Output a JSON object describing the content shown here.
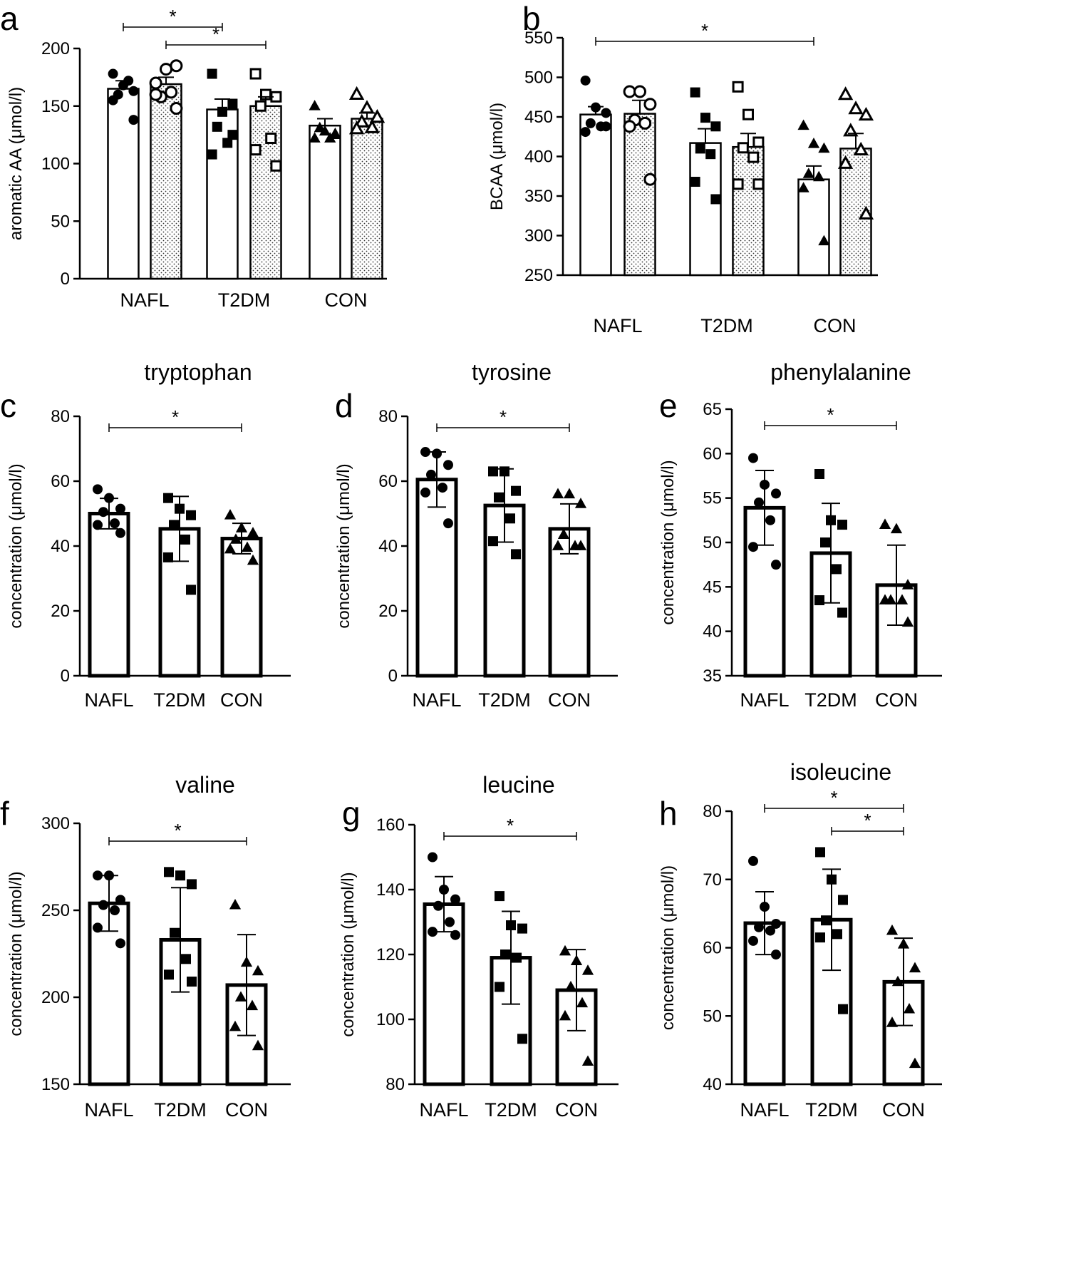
{
  "figure": {
    "description_units": "µmol/l"
  },
  "chart_data": [
    {
      "id": "a",
      "letter": "a",
      "type": "bar",
      "title": "",
      "ylabel": "aromatic AA (μmol/l)",
      "ylim": [
        0,
        200
      ],
      "yticks": [
        0,
        50,
        100,
        150,
        200
      ],
      "categories": [
        "NAFL",
        "T2DM",
        "CON"
      ],
      "error_bars": "sem",
      "paired_bars": true,
      "series": [
        {
          "name": "filled / open bar",
          "fill": "white",
          "marker": [
            "circle-filled",
            "square-filled",
            "triangle-filled"
          ],
          "values": [
            165,
            147,
            133
          ],
          "errors": [
            7,
            9,
            6
          ],
          "points": [
            [
              155,
              168,
              163,
              160,
              172,
              178,
              138
            ],
            [
              178,
              145,
              152,
              132,
              118,
              108,
              125
            ],
            [
              150,
              128,
              125,
              131,
              122,
              122,
              126
            ]
          ]
        },
        {
          "name": "open marker / dotted bar",
          "fill": "dotted",
          "marker": [
            "circle-open",
            "square-open",
            "triangle-open"
          ],
          "values": [
            169,
            150,
            139
          ],
          "errors": [
            6,
            8,
            5
          ],
          "points": [
            [
              170,
              182,
              185,
              158,
              162,
              160,
              148
            ],
            [
              178,
              160,
              158,
              150,
              122,
              112,
              98
            ],
            [
              160,
              148,
              140,
              136,
              131,
              130,
              140
            ]
          ]
        }
      ],
      "significance": [
        {
          "from": 0,
          "to": 2,
          "label": "*"
        },
        {
          "from": 1,
          "to": 3,
          "label": "*"
        }
      ]
    },
    {
      "id": "b",
      "letter": "b",
      "type": "bar",
      "title": "",
      "ylabel": "BCAA (μmol/l)",
      "ylim": [
        250,
        550
      ],
      "yticks": [
        250,
        300,
        350,
        400,
        450,
        500,
        550
      ],
      "categories": [
        "NAFL",
        "T2DM",
        "CON"
      ],
      "error_bars": "sem",
      "paired_bars": true,
      "series": [
        {
          "name": "filled / open bar",
          "fill": "white",
          "marker": [
            "circle-filled",
            "square-filled",
            "triangle-filled"
          ],
          "values": [
            453,
            417,
            371
          ],
          "errors": [
            10,
            18,
            17
          ],
          "points": [
            [
              496,
              462,
              455,
              442,
              438,
              431,
              438
            ],
            [
              481,
              449,
              438,
              410,
              403,
              368,
              346
            ],
            [
              439,
              416,
              410,
              378,
              374,
              360,
              293
            ]
          ]
        },
        {
          "name": "open marker / dotted bar",
          "fill": "dotted",
          "marker": [
            "circle-open",
            "square-open",
            "triangle-open"
          ],
          "values": [
            454,
            412,
            410
          ],
          "errors": [
            17,
            17,
            19
          ],
          "points": [
            [
              482,
              482,
              466,
              446,
              442,
              438,
              371
            ],
            [
              488,
              453,
              418,
              411,
              399,
              365,
              365
            ],
            [
              478,
              460,
              452,
              432,
              408,
              391,
              327
            ]
          ]
        }
      ],
      "significance": [
        {
          "from": 0,
          "to": 4,
          "label": "*"
        }
      ]
    },
    {
      "id": "c",
      "letter": "c",
      "type": "bar",
      "title": "tryptophan",
      "ylabel": "concentration (μmol/l)",
      "ylim": [
        0,
        80
      ],
      "yticks": [
        0,
        20,
        40,
        60,
        80
      ],
      "categories": [
        "NAFL",
        "T2DM",
        "CON"
      ],
      "error_bars": "sd",
      "marker": [
        "circle-filled",
        "square-filled",
        "triangle-filled"
      ],
      "values": [
        50,
        45.3,
        42.3
      ],
      "errors": [
        4.7,
        10,
        4.7
      ],
      "points": [
        [
          57.5,
          54.8,
          51.5,
          50.5,
          47,
          46.5,
          44
        ],
        [
          54.8,
          51.5,
          49.5,
          46.5,
          42,
          36.5,
          26.5
        ],
        [
          49.5,
          45.5,
          44,
          42,
          39.5,
          39,
          35.5
        ]
      ],
      "significance": [
        {
          "from": 0,
          "to": 2,
          "label": "*"
        }
      ]
    },
    {
      "id": "d",
      "letter": "d",
      "type": "bar",
      "title": "tyrosine",
      "ylabel": "concentration (μmol/l)",
      "ylim": [
        0,
        80
      ],
      "yticks": [
        0,
        20,
        40,
        60,
        80
      ],
      "categories": [
        "NAFL",
        "T2DM",
        "CON"
      ],
      "error_bars": "sd",
      "marker": [
        "circle-filled",
        "square-filled",
        "triangle-filled"
      ],
      "values": [
        60.5,
        52.5,
        45.3
      ],
      "errors": [
        8.5,
        11.3,
        7.7
      ],
      "points": [
        [
          69,
          68.5,
          65,
          62,
          58,
          56.5,
          47
        ],
        [
          63,
          63,
          57,
          55,
          48.5,
          41.5,
          37.5
        ],
        [
          56,
          56,
          53,
          43.5,
          40,
          40,
          40
        ]
      ],
      "significance": [
        {
          "from": 0,
          "to": 2,
          "label": "*"
        }
      ]
    },
    {
      "id": "e",
      "letter": "e",
      "type": "bar",
      "title": "phenylalanine",
      "ylabel": "concentration (μmol/l)",
      "ylim": [
        35,
        65
      ],
      "yticks": [
        35,
        40,
        45,
        50,
        55,
        60,
        65
      ],
      "categories": [
        "NAFL",
        "T2DM",
        "CON"
      ],
      "error_bars": "sd",
      "marker": [
        "circle-filled",
        "square-filled",
        "triangle-filled"
      ],
      "values": [
        53.9,
        48.8,
        45.2
      ],
      "errors": [
        4.2,
        5.6,
        4.5
      ],
      "points": [
        [
          59.5,
          56.5,
          55.5,
          54.5,
          52.5,
          49.5,
          47.5
        ],
        [
          57.7,
          52.5,
          52,
          50,
          47,
          43.5,
          42.1
        ],
        [
          52,
          51.5,
          45.2,
          43.5,
          43.5,
          43.5,
          41
        ]
      ],
      "significance": [
        {
          "from": 0,
          "to": 2,
          "label": "*"
        }
      ]
    },
    {
      "id": "f",
      "letter": "f",
      "type": "bar",
      "title": "valine",
      "ylabel": "concentration (μmol/l)",
      "ylim": [
        150,
        300
      ],
      "yticks": [
        150,
        200,
        250,
        300
      ],
      "categories": [
        "NAFL",
        "T2DM",
        "CON"
      ],
      "error_bars": "sd",
      "marker": [
        "circle-filled",
        "square-filled",
        "triangle-filled"
      ],
      "values": [
        254,
        233,
        207
      ],
      "errors": [
        16,
        30,
        29
      ],
      "points": [
        [
          270,
          270,
          256,
          253,
          250,
          240,
          231
        ],
        [
          272,
          270,
          265,
          237,
          222,
          213,
          209
        ],
        [
          253,
          220,
          215,
          200,
          195,
          183,
          172
        ]
      ],
      "significance": [
        {
          "from": 0,
          "to": 2,
          "label": "*"
        }
      ]
    },
    {
      "id": "g",
      "letter": "g",
      "type": "bar",
      "title": "leucine",
      "ylabel": "concentration (μmol/l)",
      "ylim": [
        80,
        160
      ],
      "yticks": [
        80,
        100,
        120,
        140,
        160
      ],
      "categories": [
        "NAFL",
        "T2DM",
        "CON"
      ],
      "error_bars": "sd",
      "marker": [
        "circle-filled",
        "square-filled",
        "triangle-filled"
      ],
      "values": [
        135.5,
        119,
        109
      ],
      "errors": [
        8.5,
        14.3,
        12.5
      ],
      "points": [
        [
          150,
          140,
          137,
          135,
          130,
          127,
          126
        ],
        [
          138,
          129,
          128,
          120,
          119,
          110,
          94
        ],
        [
          121,
          118,
          115,
          110,
          105,
          101,
          87
        ]
      ],
      "significance": [
        {
          "from": 0,
          "to": 2,
          "label": "*"
        }
      ]
    },
    {
      "id": "h",
      "letter": "h",
      "type": "bar",
      "title": "isoleucine",
      "ylabel": "concentration (μmol/l)",
      "ylim": [
        40,
        80
      ],
      "yticks": [
        40,
        50,
        60,
        70,
        80
      ],
      "categories": [
        "NAFL",
        "T2DM",
        "CON"
      ],
      "error_bars": "sd",
      "marker": [
        "circle-filled",
        "square-filled",
        "triangle-filled"
      ],
      "values": [
        63.6,
        64.1,
        55
      ],
      "errors": [
        4.6,
        7.4,
        6.4
      ],
      "points": [
        [
          72.7,
          66,
          63.5,
          63,
          62.5,
          61,
          59
        ],
        [
          74,
          70,
          67,
          64,
          62,
          61.5,
          51
        ],
        [
          62.5,
          60.5,
          57,
          55,
          51,
          49,
          43
        ]
      ],
      "significance": [
        {
          "from": 0,
          "to": 2,
          "label": "*"
        },
        {
          "from": 1,
          "to": 2,
          "label": "*"
        }
      ]
    }
  ]
}
